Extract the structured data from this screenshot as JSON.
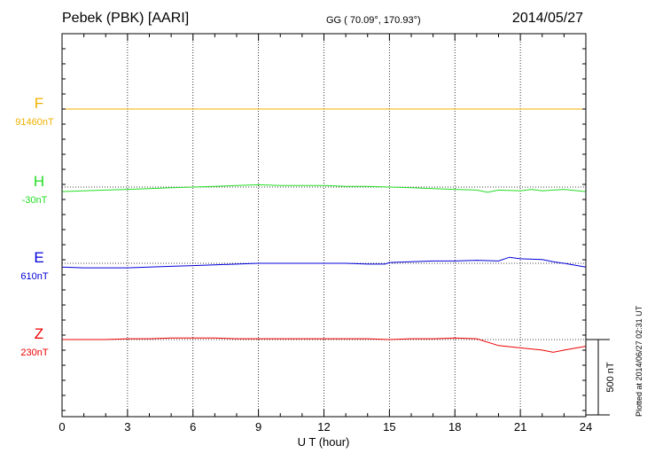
{
  "header": {
    "station": "Pebek (PBK)  [AARI]",
    "coords": "GG ( 70.09°, 170.93°)",
    "date": "2014/05/27"
  },
  "footer_note": "Plotted at 2014/06/27 02:31 UT",
  "chart_data": {
    "type": "line",
    "xlabel": "U T (hour)",
    "xlim": [
      0,
      24
    ],
    "xticks": [
      "0",
      "3",
      "6",
      "9",
      "12",
      "15",
      "18",
      "21",
      "24"
    ],
    "scale_label": "500 nT",
    "scale_nT": 500,
    "series": [
      {
        "name": "F",
        "baseline_label": "91460nT",
        "color": "#f0b000",
        "x": [
          0,
          24
        ],
        "y": [
          0,
          0
        ]
      },
      {
        "name": "H",
        "baseline_label": "-30nT",
        "color": "#22dd22",
        "x": [
          0,
          1,
          2,
          3,
          4,
          5,
          6,
          7,
          8,
          9,
          10,
          11,
          12,
          13,
          14,
          15,
          16,
          17,
          18,
          19,
          19.5,
          20,
          21,
          21.5,
          22,
          23,
          24
        ],
        "y": [
          -30,
          -25,
          -20,
          -15,
          -10,
          -5,
          0,
          5,
          10,
          15,
          10,
          10,
          10,
          5,
          5,
          0,
          -5,
          -10,
          -15,
          -20,
          -35,
          -20,
          -25,
          -15,
          -25,
          -15,
          -30
        ]
      },
      {
        "name": "E",
        "baseline_label": "610nT",
        "color": "#0000dd",
        "x": [
          0,
          1,
          2,
          3,
          4,
          5,
          6,
          7,
          8,
          9,
          10,
          11,
          12,
          13,
          14,
          14.8,
          15,
          16,
          17,
          18,
          19,
          20,
          20.5,
          21,
          22,
          22.5,
          23,
          24
        ],
        "y": [
          -25,
          -30,
          -30,
          -30,
          -25,
          -20,
          -15,
          -10,
          -5,
          0,
          0,
          0,
          0,
          0,
          -5,
          -5,
          5,
          10,
          15,
          15,
          20,
          15,
          40,
          30,
          25,
          10,
          0,
          -25
        ]
      },
      {
        "name": "Z",
        "baseline_label": "230nT",
        "color": "#ee0000",
        "x": [
          0,
          1,
          2,
          3,
          4,
          5,
          6,
          7,
          8,
          9,
          10,
          11,
          12,
          13,
          14,
          15,
          16,
          17,
          18,
          19,
          20,
          21,
          22,
          22.5,
          23,
          24
        ],
        "y": [
          0,
          0,
          0,
          5,
          5,
          10,
          10,
          10,
          5,
          5,
          5,
          5,
          5,
          5,
          5,
          0,
          5,
          5,
          10,
          5,
          -40,
          -55,
          -70,
          -85,
          -70,
          -45
        ]
      }
    ]
  }
}
